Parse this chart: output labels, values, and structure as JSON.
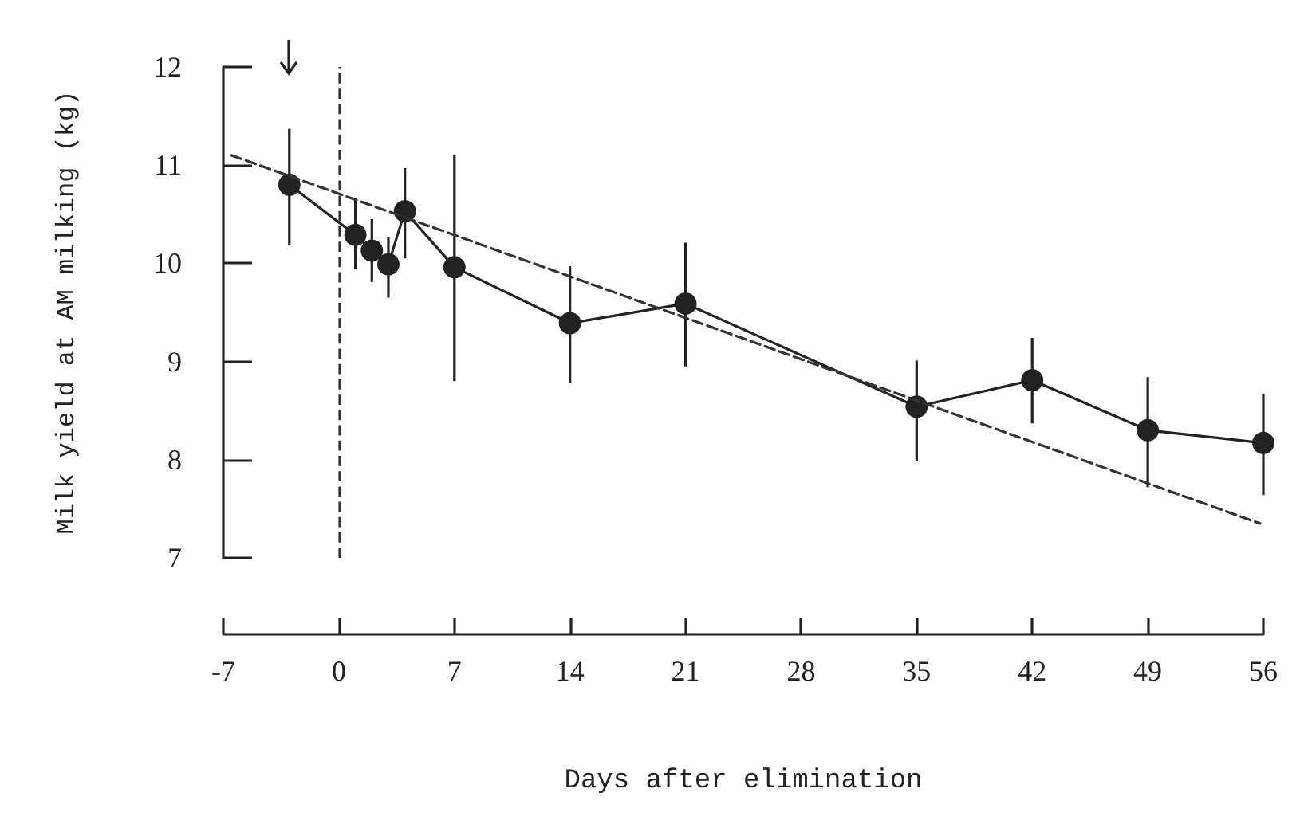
{
  "chart_data": {
    "type": "line",
    "xlabel": "Days after elimination",
    "ylabel": "Milk yield at AM milking (kg)",
    "xlim": [
      -7,
      56
    ],
    "xticks": [
      -7,
      0,
      7,
      14,
      21,
      28,
      35,
      42,
      49,
      56
    ],
    "ylim": [
      7,
      12
    ],
    "yticks": [
      7,
      8,
      9,
      10,
      11,
      12
    ],
    "ref_lines": [
      {
        "axis": "x",
        "value": 0,
        "line_style": "dashed",
        "color": "#333333"
      }
    ],
    "series": [
      {
        "color": "#222222",
        "marker": "circle",
        "line_style": "solid",
        "x": [
          -3,
          1,
          2,
          3,
          4,
          7,
          14,
          21,
          35,
          42,
          49,
          56
        ],
        "values": [
          10.8,
          10.29,
          10.13,
          9.99,
          10.53,
          9.96,
          9.39,
          9.59,
          8.54,
          8.81,
          8.3,
          8.17
        ],
        "errors": [
          [
            10.18,
            11.37
          ],
          [
            9.94,
            10.66
          ],
          [
            9.81,
            10.45
          ],
          [
            9.65,
            10.27
          ],
          [
            10.05,
            10.97
          ],
          [
            8.8,
            11.11
          ],
          [
            8.78,
            9.97
          ],
          [
            8.95,
            10.21
          ],
          [
            7.99,
            9.01
          ],
          [
            8.37,
            9.24
          ],
          [
            7.72,
            8.84
          ],
          [
            7.64,
            8.67
          ]
        ]
      },
      {
        "color": "#333333",
        "marker": "none",
        "line_style": "dashed",
        "x": [
          -6.5,
          55.8
        ],
        "values": [
          11.1,
          7.35
        ]
      }
    ]
  }
}
